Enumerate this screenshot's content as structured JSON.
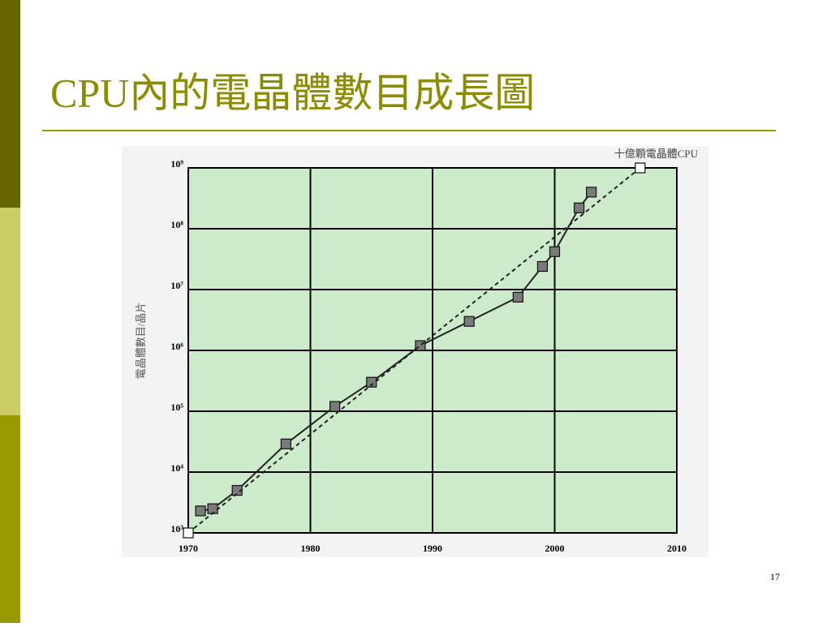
{
  "chart_data": {
    "type": "line",
    "title": "CPU內的電晶體數目成長圖",
    "y_label": "電晶體數目/晶片",
    "annotation": "十億顆電晶體CPU",
    "log_y": true,
    "grid": true,
    "plot_color": "#cdebcb",
    "xlim": [
      1970,
      2010
    ],
    "xticks": [
      1970,
      1980,
      1990,
      2000,
      2010
    ],
    "ylim": [
      1000,
      1000000000
    ],
    "yticks": [
      {
        "value": 1000,
        "label": "10³"
      },
      {
        "value": 10000,
        "label": "10⁴"
      },
      {
        "value": 100000,
        "label": "10⁵"
      },
      {
        "value": 1000000,
        "label": "10⁶"
      },
      {
        "value": 10000000,
        "label": "10⁷"
      },
      {
        "value": 100000000,
        "label": "10⁸"
      },
      {
        "value": 1000000000,
        "label": "10⁹"
      }
    ],
    "series": [
      {
        "color": "#222222",
        "marker_color": "#7a7a7a",
        "dashed": false,
        "x": [
          1971,
          1972,
          1974,
          1978,
          1982,
          1985,
          1989,
          1993,
          1997,
          1999,
          2000,
          2002,
          2003
        ],
        "values": [
          2300,
          2500,
          5000,
          29000,
          120000,
          300000,
          1200000,
          3000000,
          7500000,
          24000000,
          42000000,
          220000000,
          400000000
        ]
      },
      {
        "color": "#222222",
        "marker_color": "#ffffff",
        "dashed": true,
        "x": [
          1970,
          2007
        ],
        "values": [
          1000,
          1000000000
        ]
      }
    ]
  },
  "page_number": "17"
}
